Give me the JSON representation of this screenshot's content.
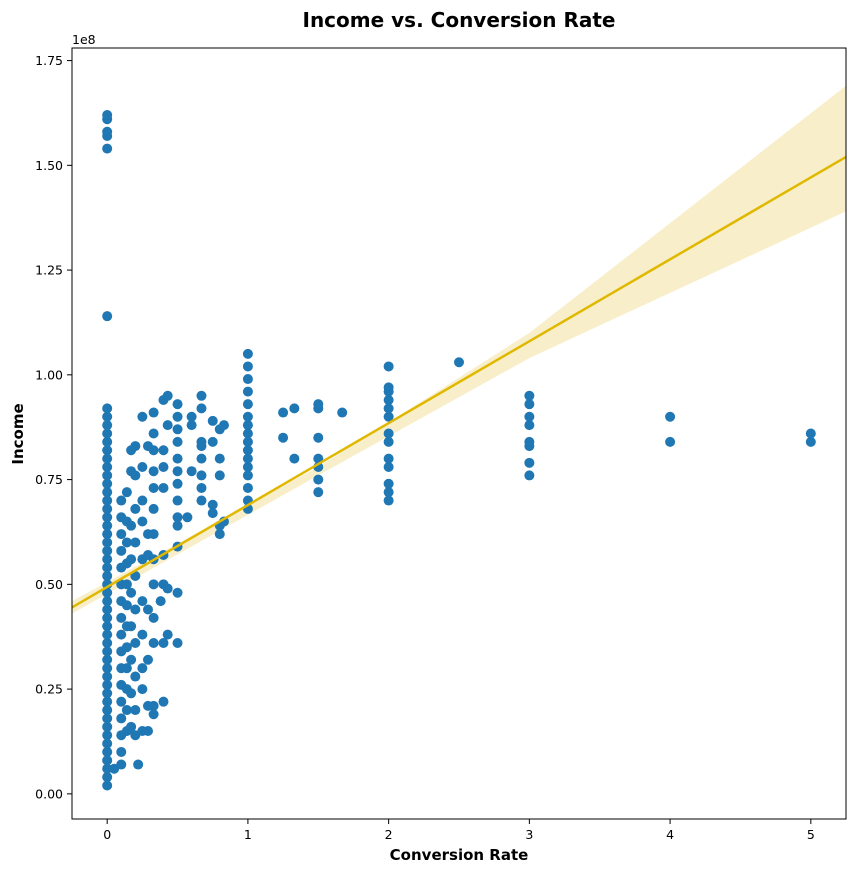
{
  "chart_data": {
    "type": "scatter",
    "title": "Income vs. Conversion Rate",
    "xlabel": "Conversion Rate",
    "ylabel": "Income",
    "y_offset_label": "1e8",
    "xlim": [
      -0.25,
      5.25
    ],
    "ylim": [
      -0.06,
      1.78
    ],
    "x_ticks": [
      0,
      1,
      2,
      3,
      4,
      5
    ],
    "x_tick_labels": [
      "0",
      "1",
      "2",
      "3",
      "4",
      "5"
    ],
    "y_ticks": [
      0.0,
      0.25,
      0.5,
      0.75,
      1.0,
      1.25,
      1.5,
      1.75
    ],
    "y_tick_labels": [
      "0.00",
      "0.25",
      "0.50",
      "0.75",
      "1.00",
      "1.25",
      "1.50",
      "1.75"
    ],
    "grid": false,
    "legend": "none",
    "colors": {
      "points": "#1f77b4",
      "regression_line": "#e0b800",
      "confidence_band": "#f5e9b8"
    },
    "series": [
      {
        "type": "scatter",
        "points": [
          [
            0,
            0.02
          ],
          [
            0,
            0.04
          ],
          [
            0,
            0.06
          ],
          [
            0,
            0.08
          ],
          [
            0,
            0.1
          ],
          [
            0,
            0.12
          ],
          [
            0,
            0.14
          ],
          [
            0,
            0.16
          ],
          [
            0,
            0.18
          ],
          [
            0,
            0.2
          ],
          [
            0,
            0.22
          ],
          [
            0,
            0.24
          ],
          [
            0,
            0.26
          ],
          [
            0,
            0.28
          ],
          [
            0,
            0.3
          ],
          [
            0,
            0.32
          ],
          [
            0,
            0.34
          ],
          [
            0,
            0.36
          ],
          [
            0,
            0.38
          ],
          [
            0,
            0.4
          ],
          [
            0,
            0.42
          ],
          [
            0,
            0.44
          ],
          [
            0,
            0.46
          ],
          [
            0,
            0.48
          ],
          [
            0,
            0.5
          ],
          [
            0,
            0.52
          ],
          [
            0,
            0.54
          ],
          [
            0,
            0.56
          ],
          [
            0,
            0.58
          ],
          [
            0,
            0.6
          ],
          [
            0,
            0.62
          ],
          [
            0,
            0.64
          ],
          [
            0,
            0.66
          ],
          [
            0,
            0.68
          ],
          [
            0,
            0.7
          ],
          [
            0,
            0.72
          ],
          [
            0,
            0.74
          ],
          [
            0,
            0.76
          ],
          [
            0,
            0.78
          ],
          [
            0,
            0.8
          ],
          [
            0,
            0.82
          ],
          [
            0,
            0.84
          ],
          [
            0,
            0.86
          ],
          [
            0,
            0.88
          ],
          [
            0,
            0.9
          ],
          [
            0,
            0.92
          ],
          [
            0,
            1.14
          ],
          [
            0,
            1.54
          ],
          [
            0,
            1.57
          ],
          [
            0,
            1.58
          ],
          [
            0,
            1.61
          ],
          [
            0,
            1.62
          ],
          [
            0.05,
            0.06
          ],
          [
            0.1,
            0.07
          ],
          [
            0.1,
            0.1
          ],
          [
            0.1,
            0.14
          ],
          [
            0.1,
            0.18
          ],
          [
            0.1,
            0.22
          ],
          [
            0.1,
            0.26
          ],
          [
            0.1,
            0.3
          ],
          [
            0.1,
            0.34
          ],
          [
            0.1,
            0.38
          ],
          [
            0.1,
            0.42
          ],
          [
            0.1,
            0.46
          ],
          [
            0.1,
            0.5
          ],
          [
            0.1,
            0.54
          ],
          [
            0.1,
            0.58
          ],
          [
            0.1,
            0.62
          ],
          [
            0.1,
            0.66
          ],
          [
            0.1,
            0.7
          ],
          [
            0.14,
            0.15
          ],
          [
            0.14,
            0.2
          ],
          [
            0.14,
            0.25
          ],
          [
            0.14,
            0.3
          ],
          [
            0.14,
            0.35
          ],
          [
            0.14,
            0.4
          ],
          [
            0.14,
            0.45
          ],
          [
            0.14,
            0.5
          ],
          [
            0.14,
            0.55
          ],
          [
            0.14,
            0.6
          ],
          [
            0.14,
            0.65
          ],
          [
            0.14,
            0.72
          ],
          [
            0.17,
            0.16
          ],
          [
            0.17,
            0.24
          ],
          [
            0.17,
            0.32
          ],
          [
            0.17,
            0.4
          ],
          [
            0.17,
            0.48
          ],
          [
            0.17,
            0.56
          ],
          [
            0.17,
            0.64
          ],
          [
            0.17,
            0.77
          ],
          [
            0.17,
            0.82
          ],
          [
            0.2,
            0.14
          ],
          [
            0.2,
            0.2
          ],
          [
            0.2,
            0.28
          ],
          [
            0.2,
            0.36
          ],
          [
            0.2,
            0.44
          ],
          [
            0.2,
            0.52
          ],
          [
            0.2,
            0.6
          ],
          [
            0.2,
            0.68
          ],
          [
            0.2,
            0.76
          ],
          [
            0.2,
            0.83
          ],
          [
            0.22,
            0.07
          ],
          [
            0.25,
            0.15
          ],
          [
            0.25,
            0.25
          ],
          [
            0.25,
            0.3
          ],
          [
            0.25,
            0.38
          ],
          [
            0.25,
            0.46
          ],
          [
            0.25,
            0.56
          ],
          [
            0.25,
            0.65
          ],
          [
            0.25,
            0.7
          ],
          [
            0.25,
            0.78
          ],
          [
            0.25,
            0.9
          ],
          [
            0.29,
            0.15
          ],
          [
            0.29,
            0.21
          ],
          [
            0.29,
            0.32
          ],
          [
            0.29,
            0.44
          ],
          [
            0.29,
            0.57
          ],
          [
            0.29,
            0.62
          ],
          [
            0.29,
            0.83
          ],
          [
            0.33,
            0.19
          ],
          [
            0.33,
            0.21
          ],
          [
            0.33,
            0.36
          ],
          [
            0.33,
            0.42
          ],
          [
            0.33,
            0.5
          ],
          [
            0.33,
            0.56
          ],
          [
            0.33,
            0.62
          ],
          [
            0.33,
            0.68
          ],
          [
            0.33,
            0.73
          ],
          [
            0.33,
            0.77
          ],
          [
            0.33,
            0.82
          ],
          [
            0.33,
            0.86
          ],
          [
            0.33,
            0.91
          ],
          [
            0.38,
            0.46
          ],
          [
            0.4,
            0.22
          ],
          [
            0.4,
            0.36
          ],
          [
            0.4,
            0.5
          ],
          [
            0.4,
            0.57
          ],
          [
            0.4,
            0.73
          ],
          [
            0.4,
            0.78
          ],
          [
            0.4,
            0.82
          ],
          [
            0.4,
            0.94
          ],
          [
            0.43,
            0.38
          ],
          [
            0.43,
            0.49
          ],
          [
            0.43,
            0.88
          ],
          [
            0.43,
            0.95
          ],
          [
            0.5,
            0.36
          ],
          [
            0.5,
            0.48
          ],
          [
            0.5,
            0.59
          ],
          [
            0.5,
            0.64
          ],
          [
            0.5,
            0.66
          ],
          [
            0.5,
            0.7
          ],
          [
            0.5,
            0.74
          ],
          [
            0.5,
            0.77
          ],
          [
            0.5,
            0.8
          ],
          [
            0.5,
            0.84
          ],
          [
            0.5,
            0.87
          ],
          [
            0.5,
            0.9
          ],
          [
            0.5,
            0.93
          ],
          [
            0.57,
            0.66
          ],
          [
            0.6,
            0.77
          ],
          [
            0.6,
            0.88
          ],
          [
            0.6,
            0.9
          ],
          [
            0.67,
            0.7
          ],
          [
            0.67,
            0.73
          ],
          [
            0.67,
            0.76
          ],
          [
            0.67,
            0.8
          ],
          [
            0.67,
            0.83
          ],
          [
            0.67,
            0.84
          ],
          [
            0.67,
            0.92
          ],
          [
            0.67,
            0.95
          ],
          [
            0.75,
            0.67
          ],
          [
            0.75,
            0.69
          ],
          [
            0.75,
            0.84
          ],
          [
            0.75,
            0.89
          ],
          [
            0.8,
            0.62
          ],
          [
            0.8,
            0.64
          ],
          [
            0.8,
            0.76
          ],
          [
            0.8,
            0.8
          ],
          [
            0.8,
            0.87
          ],
          [
            0.83,
            0.65
          ],
          [
            0.83,
            0.88
          ],
          [
            1,
            0.68
          ],
          [
            1,
            0.7
          ],
          [
            1,
            0.73
          ],
          [
            1,
            0.76
          ],
          [
            1,
            0.78
          ],
          [
            1,
            0.8
          ],
          [
            1,
            0.82
          ],
          [
            1,
            0.84
          ],
          [
            1,
            0.86
          ],
          [
            1,
            0.88
          ],
          [
            1,
            0.9
          ],
          [
            1,
            0.93
          ],
          [
            1,
            0.96
          ],
          [
            1,
            0.99
          ],
          [
            1,
            1.02
          ],
          [
            1,
            1.05
          ],
          [
            1.25,
            0.85
          ],
          [
            1.25,
            0.91
          ],
          [
            1.33,
            0.8
          ],
          [
            1.33,
            0.92
          ],
          [
            1.5,
            0.72
          ],
          [
            1.5,
            0.75
          ],
          [
            1.5,
            0.78
          ],
          [
            1.5,
            0.8
          ],
          [
            1.5,
            0.85
          ],
          [
            1.5,
            0.92
          ],
          [
            1.5,
            0.93
          ],
          [
            1.67,
            0.91
          ],
          [
            2,
            0.7
          ],
          [
            2,
            0.72
          ],
          [
            2,
            0.74
          ],
          [
            2,
            0.78
          ],
          [
            2,
            0.8
          ],
          [
            2,
            0.84
          ],
          [
            2,
            0.86
          ],
          [
            2,
            0.9
          ],
          [
            2,
            0.92
          ],
          [
            2,
            0.94
          ],
          [
            2,
            0.96
          ],
          [
            2,
            0.97
          ],
          [
            2,
            1.02
          ],
          [
            2.5,
            1.03
          ],
          [
            3,
            0.76
          ],
          [
            3,
            0.79
          ],
          [
            3,
            0.83
          ],
          [
            3,
            0.84
          ],
          [
            3,
            0.88
          ],
          [
            3,
            0.9
          ],
          [
            3,
            0.93
          ],
          [
            3,
            0.95
          ],
          [
            4,
            0.84
          ],
          [
            4,
            0.9
          ],
          [
            5,
            0.84
          ],
          [
            5,
            0.86
          ]
        ]
      },
      {
        "type": "regression",
        "line": [
          [
            -0.25,
            0.445
          ],
          [
            5.25,
            1.52
          ]
        ],
        "band_upper": [
          [
            -0.25,
            0.46
          ],
          [
            1.5,
            0.78
          ],
          [
            3,
            1.1
          ],
          [
            5.25,
            1.69
          ]
        ],
        "band_lower": [
          [
            -0.25,
            0.43
          ],
          [
            1.5,
            0.76
          ],
          [
            3,
            1.04
          ],
          [
            5.25,
            1.39
          ]
        ]
      }
    ]
  }
}
